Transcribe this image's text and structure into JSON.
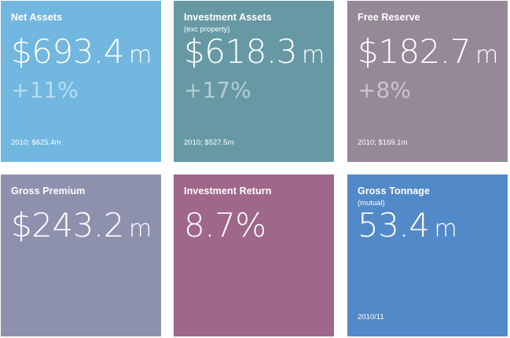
{
  "tiles": [
    {
      "title": "Net Assets",
      "subtitle": "",
      "value": "$693.4",
      "unit": "m",
      "change": "+11%",
      "note": "2010; $625.4m",
      "color": "#71b7df"
    },
    {
      "title": "Investment Assets",
      "subtitle": "(exc property)",
      "value": "$618.3",
      "unit": "m",
      "change": "+17%",
      "note": "2010; $527.5m",
      "color": "#6799a4"
    },
    {
      "title": "Free Reserve",
      "subtitle": "",
      "value": "$182.7",
      "unit": "m",
      "change": "+8%",
      "note": "2010; $169.1m",
      "color": "#958897"
    },
    {
      "title": "Gross Premium",
      "subtitle": "",
      "value": "$243.2",
      "unit": "m",
      "change": "",
      "note": "",
      "color": "#8e91ae"
    },
    {
      "title": "Investment Return",
      "subtitle": "",
      "value": "8.7%",
      "unit": "",
      "change": "",
      "note": "",
      "color": "#9f6789"
    },
    {
      "title": "Gross Tonnage",
      "subtitle": "(mutual)",
      "value": "53.4",
      "unit": "m",
      "change": "",
      "note": "2010/11",
      "color": "#5289c8"
    }
  ]
}
